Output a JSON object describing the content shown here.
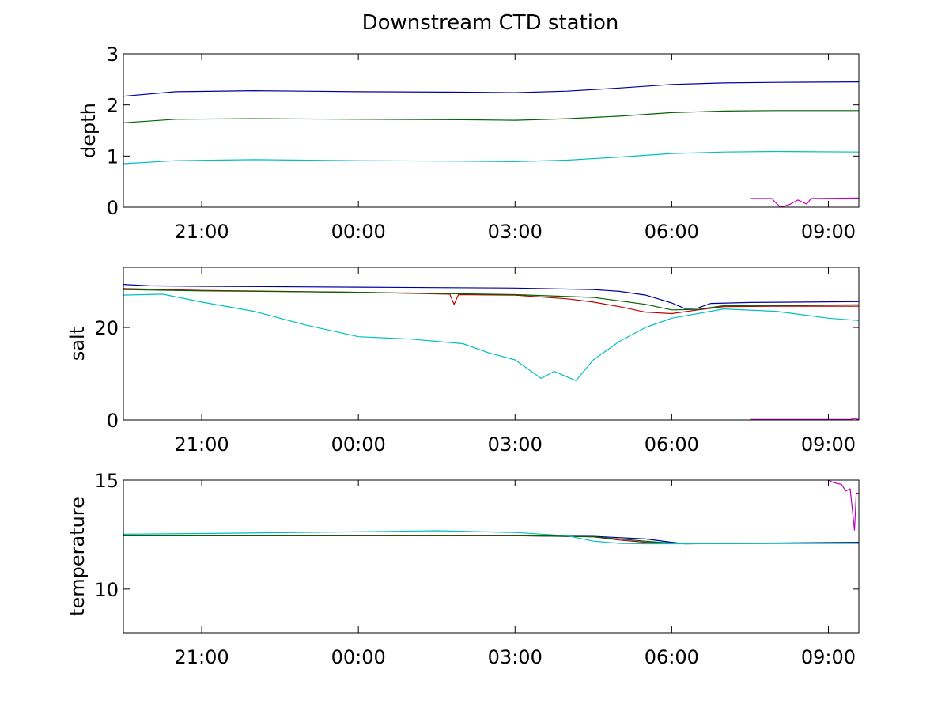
{
  "figure": {
    "title": "Downstream CTD station"
  },
  "chart_data": [
    {
      "type": "line",
      "ylabel": "depth",
      "xlim": [
        "19:30",
        "09:35"
      ],
      "ylim": [
        0,
        3
      ],
      "x_ticks": [
        "21:00",
        "00:00",
        "03:00",
        "06:00",
        "09:00"
      ],
      "y_ticks": [
        "0",
        "1",
        "2",
        "3"
      ],
      "grid": false,
      "series": [
        {
          "color": "#0000a0",
          "points": [
            [
              "19:30",
              2.17
            ],
            [
              "20:30",
              2.26
            ],
            [
              "22:00",
              2.28
            ],
            [
              "00:00",
              2.26
            ],
            [
              "02:00",
              2.25
            ],
            [
              "03:00",
              2.24
            ],
            [
              "04:00",
              2.27
            ],
            [
              "05:00",
              2.33
            ],
            [
              "06:00",
              2.4
            ],
            [
              "07:00",
              2.43
            ],
            [
              "08:00",
              2.44
            ],
            [
              "09:35",
              2.45
            ]
          ]
        },
        {
          "color": "#006400",
          "points": [
            [
              "19:30",
              1.65
            ],
            [
              "20:30",
              1.72
            ],
            [
              "22:00",
              1.73
            ],
            [
              "00:00",
              1.72
            ],
            [
              "02:00",
              1.71
            ],
            [
              "03:00",
              1.7
            ],
            [
              "04:00",
              1.73
            ],
            [
              "05:00",
              1.78
            ],
            [
              "06:00",
              1.85
            ],
            [
              "07:00",
              1.88
            ],
            [
              "08:00",
              1.89
            ],
            [
              "09:35",
              1.89
            ]
          ]
        },
        {
          "color": "#00bfbf",
          "points": [
            [
              "19:30",
              0.85
            ],
            [
              "20:30",
              0.91
            ],
            [
              "22:00",
              0.93
            ],
            [
              "00:00",
              0.91
            ],
            [
              "02:00",
              0.9
            ],
            [
              "03:00",
              0.89
            ],
            [
              "04:00",
              0.92
            ],
            [
              "05:00",
              0.98
            ],
            [
              "06:00",
              1.05
            ],
            [
              "07:00",
              1.08
            ],
            [
              "08:00",
              1.09
            ],
            [
              "09:35",
              1.08
            ]
          ]
        },
        {
          "color": "#bf00bf",
          "points": [
            [
              "07:30",
              0.17
            ],
            [
              "07:55",
              0.17
            ],
            [
              "08:00",
              0.08
            ],
            [
              "08:05",
              0.0
            ],
            [
              "08:15",
              0.05
            ],
            [
              "08:25",
              0.14
            ],
            [
              "08:35",
              0.06
            ],
            [
              "08:40",
              0.17
            ],
            [
              "09:35",
              0.18
            ]
          ]
        }
      ]
    },
    {
      "type": "line",
      "ylabel": "salt",
      "xlim": [
        "19:30",
        "09:35"
      ],
      "ylim": [
        0,
        33
      ],
      "x_ticks": [
        "21:00",
        "00:00",
        "03:00",
        "06:00",
        "09:00"
      ],
      "y_ticks": [
        "0",
        "20"
      ],
      "grid": false,
      "series": [
        {
          "color": "#0000a0",
          "points": [
            [
              "19:30",
              29.3
            ],
            [
              "20:00",
              29.0
            ],
            [
              "21:00",
              28.9
            ],
            [
              "00:00",
              28.7
            ],
            [
              "03:00",
              28.5
            ],
            [
              "04:30",
              28.2
            ],
            [
              "05:00",
              27.8
            ],
            [
              "05:30",
              27.0
            ],
            [
              "06:00",
              25.3
            ],
            [
              "06:15",
              24.1
            ],
            [
              "06:30",
              24.2
            ],
            [
              "06:45",
              25.2
            ],
            [
              "07:30",
              25.4
            ],
            [
              "09:35",
              25.6
            ]
          ]
        },
        {
          "color": "#c00000",
          "points": [
            [
              "19:30",
              28.4
            ],
            [
              "21:00",
              28.0
            ],
            [
              "00:00",
              27.6
            ],
            [
              "01:45",
              27.2
            ],
            [
              "01:50",
              25.0
            ],
            [
              "01:55",
              27.1
            ],
            [
              "03:00",
              27.0
            ],
            [
              "04:00",
              26.2
            ],
            [
              "04:30",
              25.5
            ],
            [
              "05:00",
              24.5
            ],
            [
              "05:30",
              23.3
            ],
            [
              "06:00",
              23.0
            ],
            [
              "06:30",
              23.8
            ],
            [
              "07:00",
              24.5
            ],
            [
              "08:00",
              24.6
            ],
            [
              "09:35",
              24.6
            ]
          ]
        },
        {
          "color": "#006400",
          "points": [
            [
              "19:30",
              28.2
            ],
            [
              "21:00",
              27.9
            ],
            [
              "00:00",
              27.6
            ],
            [
              "03:00",
              27.1
            ],
            [
              "04:30",
              26.5
            ],
            [
              "05:30",
              25.0
            ],
            [
              "06:00",
              23.8
            ],
            [
              "06:30",
              23.9
            ],
            [
              "07:00",
              24.7
            ],
            [
              "09:35",
              24.9
            ]
          ]
        },
        {
          "color": "#00bfbf",
          "points": [
            [
              "19:30",
              27.0
            ],
            [
              "20:15",
              27.2
            ],
            [
              "21:00",
              25.5
            ],
            [
              "22:00",
              23.5
            ],
            [
              "23:00",
              20.5
            ],
            [
              "00:00",
              18.0
            ],
            [
              "01:00",
              17.5
            ],
            [
              "02:00",
              16.5
            ],
            [
              "02:30",
              14.5
            ],
            [
              "03:00",
              13.0
            ],
            [
              "03:30",
              9.0
            ],
            [
              "03:45",
              10.5
            ],
            [
              "04:10",
              8.5
            ],
            [
              "04:30",
              13.0
            ],
            [
              "05:00",
              17.0
            ],
            [
              "05:30",
              20.0
            ],
            [
              "06:00",
              22.0
            ],
            [
              "07:00",
              24.0
            ],
            [
              "08:00",
              23.5
            ],
            [
              "09:00",
              22.0
            ],
            [
              "09:35",
              21.5
            ]
          ]
        },
        {
          "color": "#bf00bf",
          "points": [
            [
              "07:30",
              0.1
            ],
            [
              "09:25",
              0.1
            ],
            [
              "09:30",
              0.3
            ],
            [
              "09:35",
              0.1
            ]
          ]
        }
      ]
    },
    {
      "type": "line",
      "ylabel": "temperature",
      "xlim": [
        "19:30",
        "09:35"
      ],
      "ylim": [
        8,
        15
      ],
      "x_ticks": [
        "21:00",
        "00:00",
        "03:00",
        "06:00",
        "09:00"
      ],
      "y_ticks": [
        "10",
        "15"
      ],
      "grid": false,
      "series": [
        {
          "color": "#0000a0",
          "points": [
            [
              "19:30",
              12.45
            ],
            [
              "03:00",
              12.45
            ],
            [
              "04:30",
              12.42
            ],
            [
              "05:30",
              12.3
            ],
            [
              "06:00",
              12.15
            ],
            [
              "06:15",
              12.08
            ],
            [
              "09:35",
              12.15
            ]
          ]
        },
        {
          "color": "#c00000",
          "points": [
            [
              "19:30",
              12.45
            ],
            [
              "03:00",
              12.45
            ],
            [
              "04:30",
              12.4
            ],
            [
              "05:00",
              12.25
            ],
            [
              "05:30",
              12.15
            ],
            [
              "06:00",
              12.1
            ],
            [
              "09:35",
              12.12
            ]
          ]
        },
        {
          "color": "#006400",
          "points": [
            [
              "19:30",
              12.45
            ],
            [
              "03:00",
              12.46
            ],
            [
              "04:30",
              12.4
            ],
            [
              "05:15",
              12.25
            ],
            [
              "05:45",
              12.15
            ],
            [
              "06:15",
              12.08
            ],
            [
              "09:35",
              12.12
            ]
          ]
        },
        {
          "color": "#00bfbf",
          "points": [
            [
              "19:30",
              12.52
            ],
            [
              "21:00",
              12.55
            ],
            [
              "00:00",
              12.63
            ],
            [
              "01:30",
              12.68
            ],
            [
              "03:00",
              12.6
            ],
            [
              "04:00",
              12.45
            ],
            [
              "04:30",
              12.2
            ],
            [
              "05:00",
              12.1
            ],
            [
              "05:30",
              12.08
            ],
            [
              "06:00",
              12.08
            ],
            [
              "09:35",
              12.1
            ]
          ]
        },
        {
          "color": "#bf00bf",
          "points": [
            [
              "09:00",
              15.0
            ],
            [
              "09:05",
              14.9
            ],
            [
              "09:15",
              14.8
            ],
            [
              "09:20",
              14.5
            ],
            [
              "09:25",
              14.6
            ],
            [
              "09:30",
              12.7
            ],
            [
              "09:32",
              14.4
            ],
            [
              "09:35",
              14.4
            ]
          ]
        }
      ]
    }
  ]
}
